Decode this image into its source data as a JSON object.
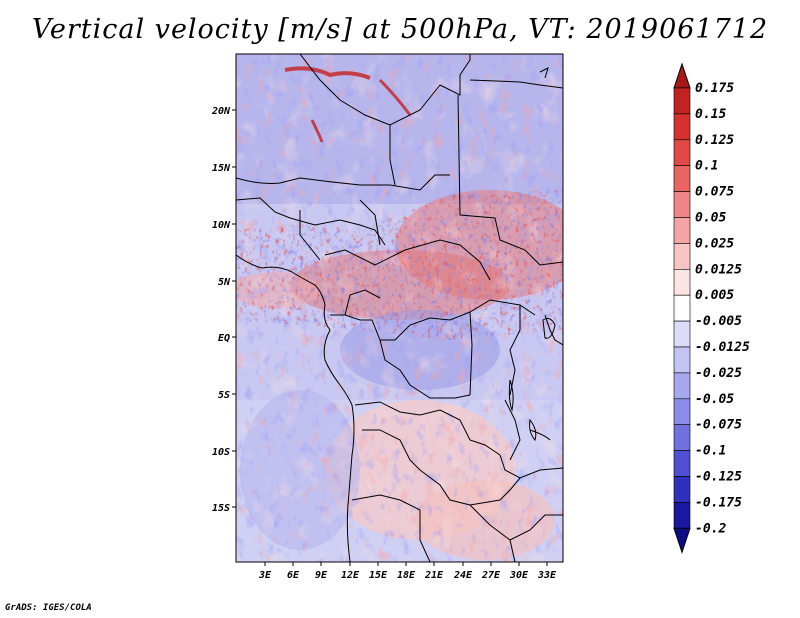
{
  "title": "Vertical velocity [m/s] at 500hPa, VT: 2019061712",
  "credit": "GrADS: IGES/COLA",
  "latitude_labels": [
    "20N",
    "15N",
    "10N",
    "5N",
    "EQ",
    "5S",
    "10S",
    "15S"
  ],
  "longitude_labels": [
    "3E",
    "6E",
    "9E",
    "12E",
    "15E",
    "18E",
    "21E",
    "24E",
    "27E",
    "30E",
    "33E"
  ],
  "colorbar": {
    "labels": [
      "0.175",
      "0.15",
      "0.125",
      "0.1",
      "0.075",
      "0.05",
      "0.025",
      "0.0125",
      "0.005",
      "-0.005",
      "-0.0125",
      "-0.025",
      "-0.05",
      "-0.075",
      "-0.1",
      "-0.125",
      "-0.175",
      "-0.2"
    ],
    "colors": [
      "#a81818",
      "#c42222",
      "#d63030",
      "#e24848",
      "#ea6464",
      "#f08484",
      "#f4a4a4",
      "#f8c4c4",
      "#fce4e4",
      "#ffffff",
      "#dcdcf8",
      "#c4c4f4",
      "#a8a8ee",
      "#8c8ce8",
      "#7070e0",
      "#5050d4",
      "#3030c0",
      "#1818a0",
      "#0c0c88"
    ]
  },
  "field_colors": {
    "ocean_north": "#d8d8f6",
    "sahara": "#b8b8ee",
    "convective_red": "#e86464",
    "convective_blue": "#9090e6",
    "south_pink": "#f6cccc",
    "south_blue": "#c0c0f0",
    "coast_line": "#000000"
  }
}
